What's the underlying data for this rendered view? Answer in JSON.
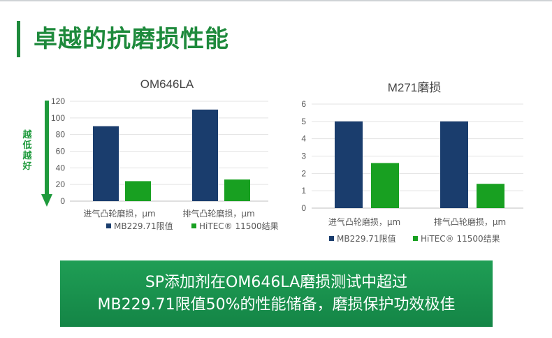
{
  "page": {
    "title": "卓越的抗磨损性能"
  },
  "colors": {
    "accent": "#1e8a3c",
    "series_mb": "#1a3d6d",
    "series_hitec": "#18a021",
    "banner": "#178c4b"
  },
  "indicator": {
    "label": "越低越好",
    "icon": "down-arrow-icon"
  },
  "chart_data": [
    {
      "type": "bar",
      "title": "OM646LA",
      "categories": [
        "进气凸轮磨损，μm",
        "排气凸轮磨损，μm"
      ],
      "series": [
        {
          "name": "MB229.71限值",
          "values": [
            90,
            110
          ]
        },
        {
          "name": "HiTEC® 11500结果",
          "values": [
            24,
            26
          ]
        }
      ],
      "yticks": [
        "0",
        "20",
        "40",
        "60",
        "80",
        "100",
        "120"
      ],
      "ylim": [
        0,
        120
      ],
      "grid": true,
      "legend": "bottom"
    },
    {
      "type": "bar",
      "title": "M271磨损",
      "categories": [
        "进气凸轮磨损，μm",
        "排气凸轮磨损，μm"
      ],
      "series": [
        {
          "name": "MB229.71限值",
          "values": [
            5,
            5
          ]
        },
        {
          "name": "HiTEC® 11500结果",
          "values": [
            2.6,
            1.4
          ]
        }
      ],
      "yticks": [
        "0",
        "1",
        "2",
        "3",
        "4",
        "5",
        "6"
      ],
      "ylim": [
        0,
        6
      ],
      "grid": true,
      "legend": "bottom"
    }
  ],
  "banner": {
    "line1": "SP添加剂在OM646LA磨损测试中超过",
    "line2": "MB229.71限值50%的性能储备，磨损保护功效极佳"
  }
}
